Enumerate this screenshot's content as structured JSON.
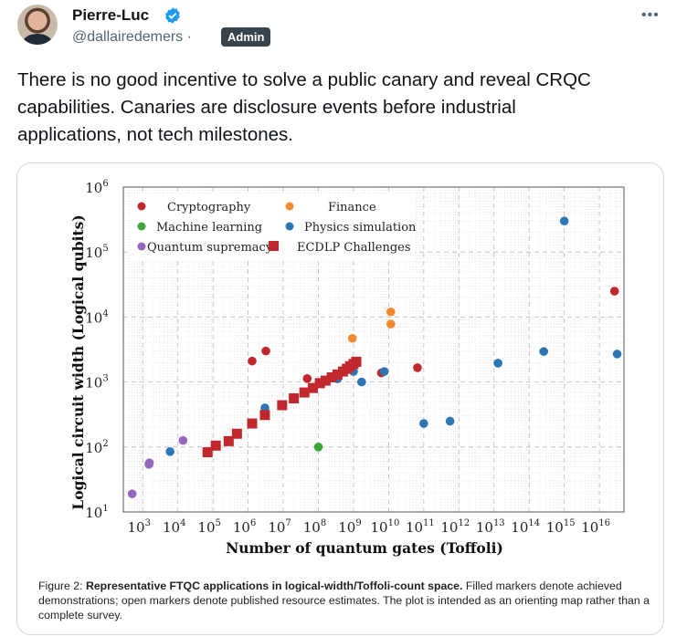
{
  "user": {
    "display_name": "Pierre-Luc",
    "handle": "@dallairedemers",
    "separator": "·",
    "badge": "Admin",
    "verified": true
  },
  "more_label": "•••",
  "tweet": {
    "lines": [
      "There is no good incentive to solve a public canary and reveal CRQC",
      "capabilities. Canaries are disclosure events before industrial",
      "applications, not tech milestones."
    ]
  },
  "figure": {
    "caption_prefix": "Figure 2:",
    "caption_bold": "Representative FTQC applications in logical-width/Toffoli-count space.",
    "caption_rest": "Filled markers denote achieved demonstrations; open markers denote published resource estimates. The plot is intended as an orienting map rather than a complete survey."
  },
  "chart_data": {
    "type": "scatter",
    "xlabel": "Number of quantum gates (Toffoli)",
    "ylabel": "Logical circuit width (Logical qubits)",
    "x_scale": "log",
    "y_scale": "log",
    "xlim": [
      280,
      5e+16
    ],
    "ylim": [
      10,
      1000000
    ],
    "xticks": [
      1000.0,
      10000.0,
      100000.0,
      1000000.0,
      10000000.0,
      100000000.0,
      1000000000.0,
      10000000000.0,
      100000000000.0,
      1000000000000.0,
      10000000000000.0,
      100000000000000.0,
      1000000000000000.0,
      1e+16
    ],
    "yticks": [
      10,
      100,
      1000,
      10000,
      100000,
      1000000
    ],
    "grid": true,
    "legend_position": "top-left",
    "series": [
      {
        "name": "Cryptography",
        "color": "#c0282d",
        "marker": "circle",
        "points": [
          [
            1300000.0,
            2100
          ],
          [
            3200000.0,
            3000
          ],
          [
            48000000.0,
            1130
          ],
          [
            6200000000.0,
            1380
          ],
          [
            66000000000.0,
            1660
          ],
          [
            2.7e+16,
            25000
          ]
        ]
      },
      {
        "name": "Finance",
        "color": "#f28a2e",
        "marker": "circle",
        "points": [
          [
            930000000.0,
            4700
          ],
          [
            11500000000.0,
            12000
          ],
          [
            11500000000.0,
            7800
          ]
        ]
      },
      {
        "name": "Machine learning",
        "color": "#3aa63a",
        "marker": "circle",
        "points": [
          [
            100000000.0,
            100
          ]
        ]
      },
      {
        "name": "Physics simulation",
        "color": "#2e75b6",
        "marker": "circle",
        "points": [
          [
            6000.0,
            85
          ],
          [
            3000000.0,
            400
          ],
          [
            350000000.0,
            1120
          ],
          [
            1000000000.0,
            1450
          ],
          [
            1700000000.0,
            1000
          ],
          [
            7500000000.0,
            1450
          ],
          [
            100000000000.0,
            230
          ],
          [
            560000000000.0,
            250
          ],
          [
            13000000000000.0,
            1950
          ],
          [
            260000000000000.0,
            2950
          ],
          [
            1000000000000000.0,
            300000
          ],
          [
            3.2e+16,
            2700
          ]
        ]
      },
      {
        "name": "Quantum supremacy",
        "color": "#9467bd",
        "marker": "circle",
        "points": [
          [
            500,
            19
          ],
          [
            1500,
            54
          ],
          [
            1550,
            57
          ],
          [
            14000.0,
            126
          ]
        ]
      },
      {
        "name": "ECDLP Challenges",
        "color": "#c0282d",
        "marker": "square",
        "points": [
          [
            70000.0,
            83
          ],
          [
            120000.0,
            105
          ],
          [
            280000.0,
            123
          ],
          [
            480000.0,
            160
          ],
          [
            1300000.0,
            230
          ],
          [
            3000000.0,
            310
          ],
          [
            9300000.0,
            440
          ],
          [
            20000000.0,
            560
          ],
          [
            40000000.0,
            690
          ],
          [
            70000000.0,
            810
          ],
          [
            110000000.0,
            960
          ],
          [
            160000000.0,
            1050
          ],
          [
            240000000.0,
            1180
          ],
          [
            350000000.0,
            1300
          ],
          [
            500000000.0,
            1450
          ],
          [
            650000000.0,
            1600
          ],
          [
            800000000.0,
            1750
          ],
          [
            1000000000.0,
            1900
          ],
          [
            1200000000.0,
            2050
          ]
        ]
      }
    ]
  }
}
